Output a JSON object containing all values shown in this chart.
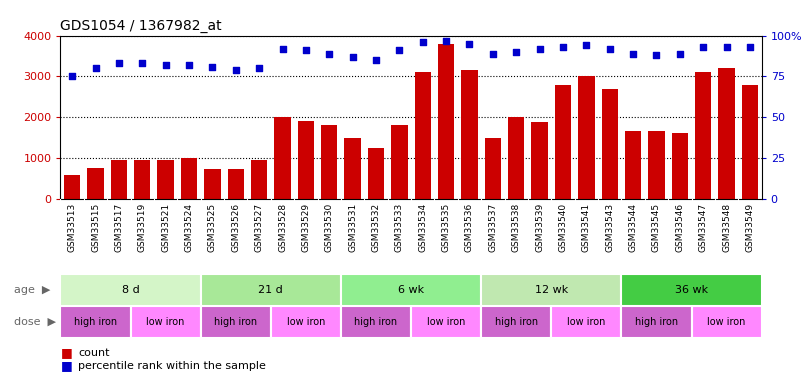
{
  "title": "GDS1054 / 1367982_at",
  "samples": [
    "GSM33513",
    "GSM33515",
    "GSM33517",
    "GSM33519",
    "GSM33521",
    "GSM33524",
    "GSM33525",
    "GSM33526",
    "GSM33527",
    "GSM33528",
    "GSM33529",
    "GSM33530",
    "GSM33531",
    "GSM33532",
    "GSM33533",
    "GSM33534",
    "GSM33535",
    "GSM33536",
    "GSM33537",
    "GSM33538",
    "GSM33539",
    "GSM33540",
    "GSM33541",
    "GSM33543",
    "GSM33544",
    "GSM33545",
    "GSM33546",
    "GSM33547",
    "GSM33548",
    "GSM33549"
  ],
  "counts": [
    580,
    760,
    960,
    940,
    950,
    1000,
    720,
    740,
    960,
    2000,
    1900,
    1820,
    1480,
    1250,
    1820,
    3100,
    3800,
    3150,
    1490,
    2000,
    1880,
    2800,
    3000,
    2700,
    1650,
    1650,
    1620,
    3100,
    3200,
    2780
  ],
  "percentiles": [
    75,
    80,
    83,
    83,
    82,
    82,
    81,
    79,
    80,
    92,
    91,
    89,
    87,
    85,
    91,
    96,
    97,
    95,
    89,
    90,
    92,
    93,
    94,
    92,
    89,
    88,
    89,
    93,
    93,
    93
  ],
  "bar_color": "#cc0000",
  "dot_color": "#0000cc",
  "ylim_left": [
    0,
    4000
  ],
  "ylim_right": [
    0,
    100
  ],
  "yticks_left": [
    0,
    1000,
    2000,
    3000,
    4000
  ],
  "yticks_right": [
    0,
    25,
    50,
    75,
    100
  ],
  "ytick_labels_left": [
    "0",
    "1000",
    "2000",
    "3000",
    "4000"
  ],
  "ytick_labels_right": [
    "0",
    "25",
    "50",
    "75",
    "100%"
  ],
  "age_groups": [
    {
      "label": "8 d",
      "start": 0,
      "end": 6,
      "color": "#d4f5c8"
    },
    {
      "label": "21 d",
      "start": 6,
      "end": 12,
      "color": "#a8e898"
    },
    {
      "label": "6 wk",
      "start": 12,
      "end": 18,
      "color": "#90ee90"
    },
    {
      "label": "12 wk",
      "start": 18,
      "end": 24,
      "color": "#c0e8b0"
    },
    {
      "label": "36 wk",
      "start": 24,
      "end": 30,
      "color": "#44cc44"
    }
  ],
  "dose_groups": [
    {
      "label": "high iron",
      "start": 0,
      "end": 3,
      "color": "#cc66cc"
    },
    {
      "label": "low iron",
      "start": 3,
      "end": 6,
      "color": "#ff88ff"
    },
    {
      "label": "high iron",
      "start": 6,
      "end": 9,
      "color": "#cc66cc"
    },
    {
      "label": "low iron",
      "start": 9,
      "end": 12,
      "color": "#ff88ff"
    },
    {
      "label": "high iron",
      "start": 12,
      "end": 15,
      "color": "#cc66cc"
    },
    {
      "label": "low iron",
      "start": 15,
      "end": 18,
      "color": "#ff88ff"
    },
    {
      "label": "high iron",
      "start": 18,
      "end": 21,
      "color": "#cc66cc"
    },
    {
      "label": "low iron",
      "start": 21,
      "end": 24,
      "color": "#ff88ff"
    },
    {
      "label": "high iron",
      "start": 24,
      "end": 27,
      "color": "#cc66cc"
    },
    {
      "label": "low iron",
      "start": 27,
      "end": 30,
      "color": "#ff88ff"
    }
  ],
  "tick_bg_color": "#d8d8d8",
  "legend_count_color": "#cc0000",
  "legend_dot_color": "#0000cc",
  "age_label": "age",
  "dose_label": "dose",
  "background_color": "#ffffff"
}
